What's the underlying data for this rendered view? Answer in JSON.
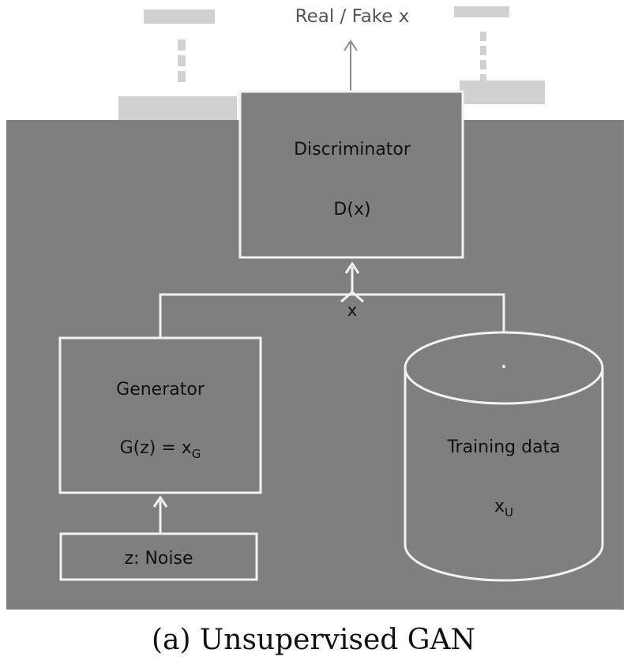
{
  "diagram": {
    "output_label": "Real / Fake x",
    "discriminator": {
      "title": "Discriminator",
      "formula": "D(x)"
    },
    "merge_label": "x",
    "generator": {
      "title": "Generator",
      "formula_main": "G(z) = x",
      "formula_sub": "G"
    },
    "noise": {
      "label": "z: Noise"
    },
    "training": {
      "title": "Training data",
      "formula_main": "x",
      "formula_sub": "U"
    }
  },
  "caption": "(a) Unsupervised GAN",
  "colors": {
    "panel_background": "#7f7f7f",
    "box_fill": "#7f7f7f",
    "box_stroke": "#f2f2f2",
    "arrow": "#f2f2f2",
    "output_arrow": "#8a8a8a",
    "page_background": "#ffffff"
  }
}
